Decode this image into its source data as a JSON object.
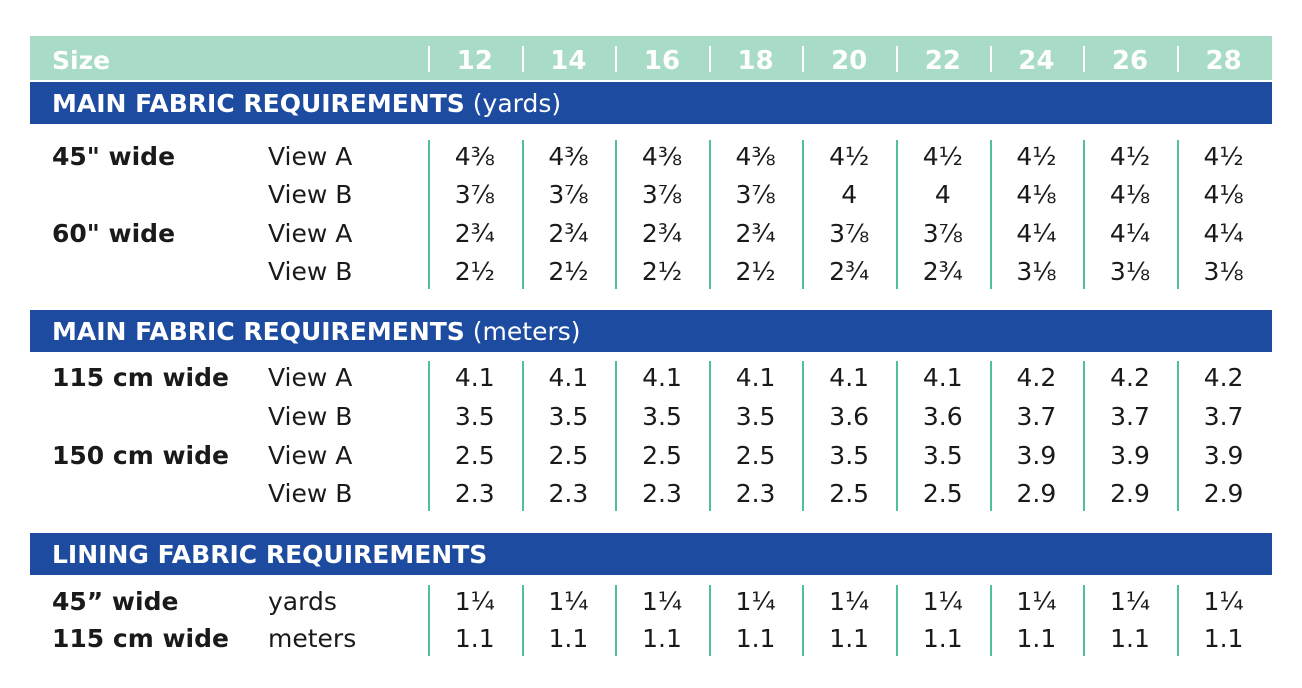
{
  "header": {
    "label": "Size",
    "sizes": [
      12,
      14,
      16,
      18,
      20,
      22,
      24,
      26,
      28
    ]
  },
  "sections": [
    {
      "title": "MAIN FABRIC REQUIREMENTS",
      "unit": "(yards)",
      "rows": [
        {
          "width": "45\" wide",
          "view": "View A",
          "values": [
            "4⅜",
            "4⅜",
            "4⅜",
            "4⅜",
            "4½",
            "4½",
            "4½",
            "4½",
            "4½"
          ]
        },
        {
          "view": "View B",
          "values": [
            "3⅞",
            "3⅞",
            "3⅞",
            "3⅞",
            "4",
            "4",
            "4⅛",
            "4⅛",
            "4⅛"
          ]
        },
        {
          "width": "60\" wide",
          "view": "View A",
          "values": [
            "2¾",
            "2¾",
            "2¾",
            "2¾",
            "3⅞",
            "3⅞",
            "4¼",
            "4¼",
            "4¼"
          ]
        },
        {
          "view": "View B",
          "values": [
            "2½",
            "2½",
            "2½",
            "2½",
            "2¾",
            "2¾",
            "3⅛",
            "3⅛",
            "3⅛"
          ]
        }
      ]
    },
    {
      "title": "MAIN FABRIC REQUIREMENTS",
      "unit": "(meters)",
      "rows": [
        {
          "width": "115 cm wide",
          "view": "View A",
          "values": [
            4.1,
            4.1,
            4.1,
            4.1,
            4.1,
            4.1,
            4.2,
            4.2,
            4.2
          ]
        },
        {
          "view": "View B",
          "values": [
            3.5,
            3.5,
            3.5,
            3.5,
            3.6,
            3.6,
            3.7,
            3.7,
            3.7
          ]
        },
        {
          "width": "150 cm wide",
          "view": "View A",
          "values": [
            2.5,
            2.5,
            2.5,
            2.5,
            3.5,
            3.5,
            3.9,
            3.9,
            3.9
          ]
        },
        {
          "view": "View B",
          "values": [
            2.3,
            2.3,
            2.3,
            2.3,
            2.5,
            2.5,
            2.9,
            2.9,
            2.9
          ]
        }
      ]
    },
    {
      "title": "LINING FABRIC REQUIREMENTS",
      "rows": [
        {
          "width": "45” wide",
          "view": "yards",
          "values": [
            "1¼",
            "1¼",
            "1¼",
            "1¼",
            "1¼",
            "1¼",
            "1¼",
            "1¼",
            "1¼"
          ]
        },
        {
          "width": "115 cm wide",
          "view": "meters",
          "values": [
            1.1,
            1.1,
            1.1,
            1.1,
            1.1,
            1.1,
            1.1,
            1.1,
            1.1
          ]
        }
      ]
    }
  ]
}
